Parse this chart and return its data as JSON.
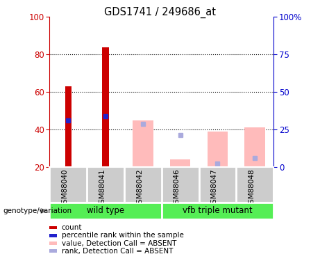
{
  "title": "GDS1741 / 249686_at",
  "categories": [
    "GSM88040",
    "GSM88041",
    "GSM88042",
    "GSM88046",
    "GSM88047",
    "GSM88048"
  ],
  "ylim_left": [
    20,
    100
  ],
  "yticks_left": [
    20,
    40,
    60,
    80,
    100
  ],
  "yticklabels_right": [
    "0",
    "25",
    "50",
    "75",
    "100%"
  ],
  "count_values": [
    63,
    84,
    0,
    0,
    0,
    0
  ],
  "rank_values": [
    45,
    47,
    0,
    0,
    0,
    0
  ],
  "absent_value_values": [
    0,
    0,
    45,
    24,
    39,
    41
  ],
  "absent_rank_values": [
    0,
    0,
    43,
    37,
    22,
    25
  ],
  "bar_bottom": 20,
  "count_color": "#cc0000",
  "rank_color": "#2222cc",
  "absent_value_color": "#ffbbbb",
  "absent_rank_color": "#aaaadd",
  "bg_xtick": "#cccccc",
  "green_color": "#55ee55",
  "legend_items": [
    "count",
    "percentile rank within the sample",
    "value, Detection Call = ABSENT",
    "rank, Detection Call = ABSENT"
  ],
  "legend_colors": [
    "#cc0000",
    "#2222cc",
    "#ffbbbb",
    "#aaaadd"
  ],
  "label_genotype": "genotype/variation"
}
